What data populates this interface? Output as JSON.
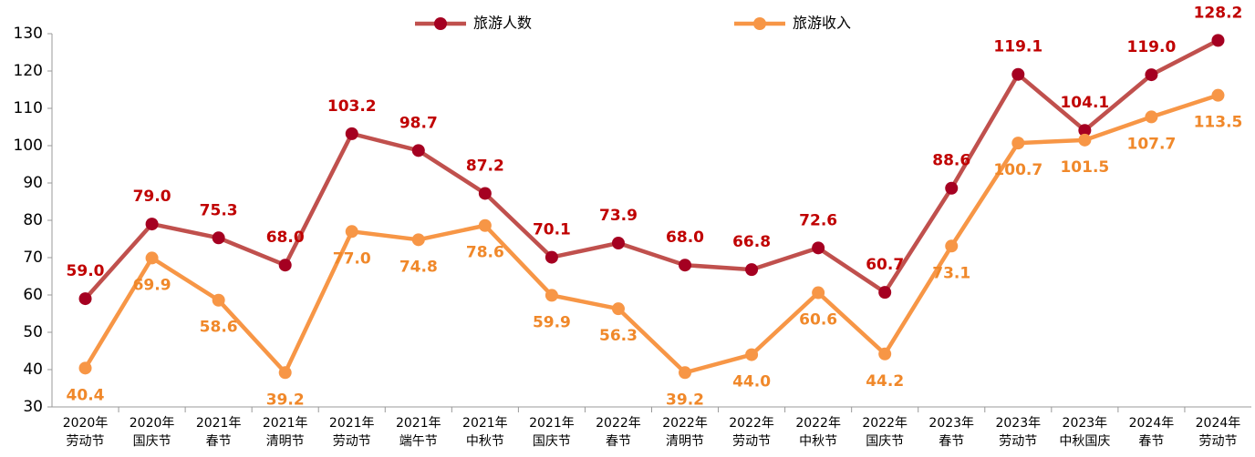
{
  "chart_data": {
    "type": "line",
    "categories": [
      [
        "2020年",
        "劳动节"
      ],
      [
        "2020年",
        "国庆节"
      ],
      [
        "2021年",
        "春节"
      ],
      [
        "2021年",
        "清明节"
      ],
      [
        "2021年",
        "劳动节"
      ],
      [
        "2021年",
        "端午节"
      ],
      [
        "2021年",
        "中秋节"
      ],
      [
        "2021年",
        "国庆节"
      ],
      [
        "2022年",
        "春节"
      ],
      [
        "2022年",
        "清明节"
      ],
      [
        "2022年",
        "劳动节"
      ],
      [
        "2022年",
        "中秋节"
      ],
      [
        "2022年",
        "国庆节"
      ],
      [
        "2023年",
        "春节"
      ],
      [
        "2023年",
        "劳动节"
      ],
      [
        "2023年",
        "中秋国庆"
      ],
      [
        "2024年",
        "春节"
      ],
      [
        "2024年",
        "劳动节"
      ]
    ],
    "series": [
      {
        "name": "旅游人数",
        "color": "#c0504d",
        "marker_color": "#a50021",
        "label_color": "#c00000",
        "label_position": "above",
        "values": [
          59.0,
          79.0,
          75.3,
          68.0,
          103.2,
          98.7,
          87.2,
          70.1,
          73.9,
          68.0,
          66.8,
          72.6,
          60.7,
          88.6,
          119.1,
          104.1,
          119.0,
          128.2
        ],
        "value_labels": [
          "59.0",
          "79.0",
          "75.3",
          "68.0",
          "103.2",
          "98.7",
          "87.2",
          "70.1",
          "73.9",
          "68.0",
          "66.8",
          "72.6",
          "60.7",
          "88.6",
          "119.1",
          "104.1",
          "119.0",
          "128.2"
        ]
      },
      {
        "name": "旅游收入",
        "color": "#f79646",
        "marker_color": "#f79646",
        "label_color": "#f0882a",
        "label_position": "below",
        "values": [
          40.4,
          69.9,
          58.6,
          39.2,
          77.0,
          74.8,
          78.6,
          59.9,
          56.3,
          39.2,
          44.0,
          60.6,
          44.2,
          73.1,
          100.7,
          101.5,
          107.7,
          113.5
        ],
        "value_labels": [
          "40.4",
          "69.9",
          "58.6",
          "39.2",
          "77.0",
          "74.8",
          "78.6",
          "59.9",
          "56.3",
          "39.2",
          "44.0",
          "60.6",
          "44.2",
          "73.1",
          "100.7",
          "101.5",
          "107.7",
          "113.5"
        ]
      }
    ],
    "ylim": [
      30,
      130
    ],
    "yticks": [
      30,
      40,
      50,
      60,
      70,
      80,
      90,
      100,
      110,
      120,
      130
    ],
    "grid": false,
    "legend": "top"
  }
}
